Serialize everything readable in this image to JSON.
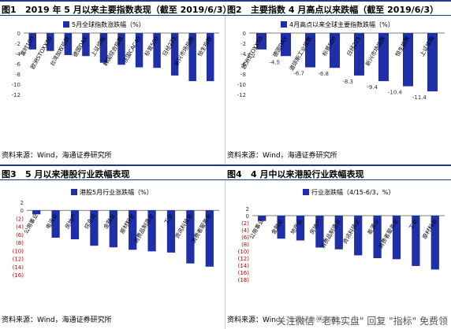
{
  "colors": {
    "bar": "#1f2fa8",
    "label_red": "#c00000",
    "header_line": "#1f3a8a",
    "axis": "#555555"
  },
  "panels": [
    {
      "fig": "图1",
      "title": "2019 年 5 月以来主要指数表现（截至 2019/6/3）",
      "source": "资料来源：Wind，海通证券研究所",
      "chart_data": {
        "type": "bar",
        "legend": "5月全球指数涨跌幅（%）",
        "categories": [
          "富时100",
          "欧洲STOXX50",
          "台湾加权指数",
          "德国DAX",
          "上证综指",
          "韩国综合指数",
          "法国CAC40",
          "标普500",
          "日经225",
          "新兴市场指数",
          "恒生指数"
        ],
        "values": [
          -3.2,
          -3.5,
          -4.3,
          -4.5,
          -5.8,
          -6.2,
          -6.7,
          -6.8,
          -8.3,
          -9.4,
          -9.4
        ],
        "ylim": [
          -12,
          0
        ],
        "yticks": [
          0,
          -2,
          -4,
          -6,
          -8,
          -10,
          -12
        ],
        "show_values": false
      }
    },
    {
      "fig": "图2",
      "title": "主要指数 4 月高点以来跌幅（截至 2019/6/3）",
      "source": "资料来源：Wind，海通证券研究所",
      "chart_data": {
        "type": "bar",
        "legend": "4月高点以来全球主要指数跌幅（%）",
        "categories": [
          "欧洲STOXX50",
          "德国DAX",
          "道琼斯工业指数",
          "标普500",
          "日经225",
          "新兴市场指数",
          "恒生指数",
          "上证综指"
        ],
        "values": [
          -3.2,
          -4.5,
          -6.7,
          -6.8,
          -8.3,
          -9.4,
          -10.4,
          -11.4
        ],
        "value_labels": [
          "-3.2",
          "-4.5",
          "-6.7",
          "-6.8",
          "-8.3",
          "-9.4",
          "-10.4",
          "-11.4"
        ],
        "ylim": [
          -12,
          0
        ],
        "yticks": [
          0,
          -2,
          -4,
          -6,
          -8,
          -10,
          -12
        ],
        "show_values": true
      }
    },
    {
      "fig": "图3",
      "title": "5 月以来港股行业跌幅表现",
      "source": "资料来源：Wind，海通证券研究所",
      "chart_data": {
        "type": "bar",
        "legend": "港股5月行业涨跌幅（%）",
        "categories": [
          "公用事业",
          "电讯业",
          "房地产",
          "综合业",
          "金融业",
          "原材料业",
          "消费品制造业",
          "工业",
          "资讯科技业",
          "消费者服务业"
        ],
        "values": [
          -1,
          -6.8,
          -7.2,
          -8.8,
          -9.2,
          -9.8,
          -10.2,
          -10.5,
          -13.2,
          -14
        ],
        "ylim": [
          -16,
          2
        ],
        "yticks": [
          2,
          0,
          -2,
          -4,
          -6,
          -8,
          -10,
          -12,
          -14,
          -16
        ],
        "ytick_labels": [
          "2",
          "0",
          "(2)",
          "(4)",
          "(6)",
          "(8)",
          "(10)",
          "(12)",
          "(14)",
          "(16)"
        ],
        "show_values": false
      }
    },
    {
      "fig": "图4",
      "title": "4 月中以来港股行业跌幅表现",
      "source": "资料来源：Wind，海通证券研究所",
      "chart_data": {
        "type": "bar",
        "legend": "行业涨跌幅（4/15-6/3，%）",
        "categories": [
          "公用事业",
          "金融业",
          "地产业",
          "房地产",
          "消费品制造业",
          "资讯科技业",
          "能源业",
          "消费者服务业",
          "工业",
          "原材料业"
        ],
        "values": [
          -1.5,
          -6.5,
          -7,
          -9,
          -9.5,
          -11.2,
          -12,
          -12.3,
          -14.2,
          -15.2
        ],
        "ylim": [
          -18,
          2
        ],
        "yticks": [
          2,
          0,
          -2,
          -4,
          -6,
          -8,
          -10,
          -12,
          -14,
          -16,
          -18
        ],
        "ytick_labels": [
          "2",
          "0",
          "(2)",
          "(4)",
          "(6)",
          "(8)",
          "(10)",
          "(12)",
          "(14)",
          "(16)",
          "(18)"
        ],
        "show_values": false
      }
    }
  ],
  "watermark": "关注微信 \"老韩实盘\" 回复 \"指标\" 免费领"
}
